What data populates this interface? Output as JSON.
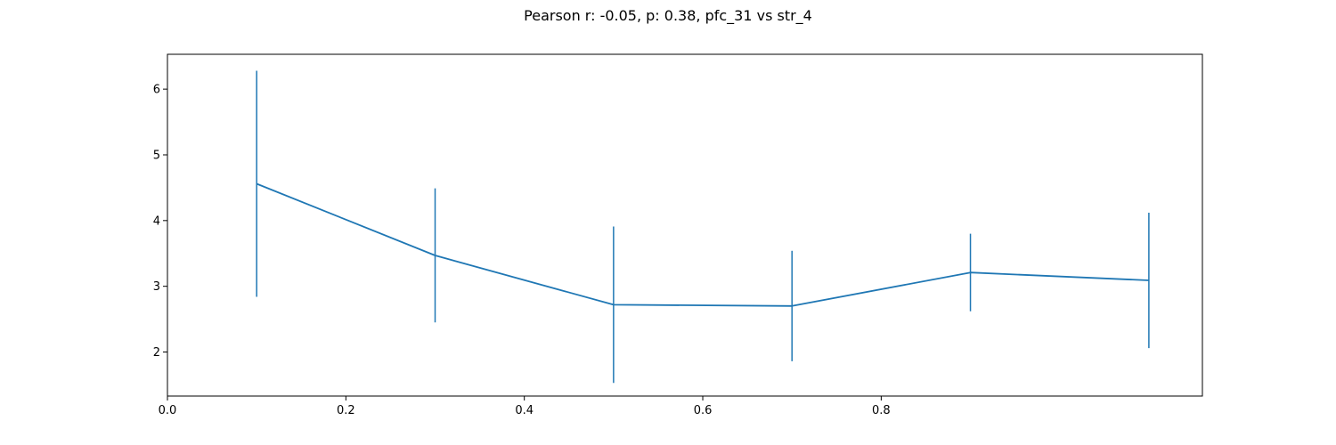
{
  "chart_data": {
    "type": "line",
    "title": "Pearson r: -0.05, p: 0.38, pfc_31 vs str_4",
    "xlabel": "",
    "ylabel": "",
    "xlim": [
      0.0,
      1.16
    ],
    "ylim": [
      1.33,
      6.53
    ],
    "x_ticks": [
      0.0,
      0.2,
      0.4,
      0.6,
      0.8
    ],
    "x_tick_labels": [
      "0.0",
      "0.2",
      "0.4",
      "0.6",
      "0.8"
    ],
    "y_ticks": [
      2,
      3,
      4,
      5,
      6
    ],
    "y_tick_labels": [
      "2",
      "3",
      "4",
      "5",
      "6"
    ],
    "grid": false,
    "legend": "none",
    "color": "#1f77b4",
    "series": [
      {
        "x": [
          0.1,
          0.3,
          0.5,
          0.7,
          0.9,
          1.1
        ],
        "y": [
          4.56,
          3.47,
          2.72,
          2.7,
          3.21,
          3.09
        ],
        "error": [
          1.72,
          1.02,
          1.19,
          0.84,
          0.59,
          1.03
        ]
      }
    ]
  }
}
